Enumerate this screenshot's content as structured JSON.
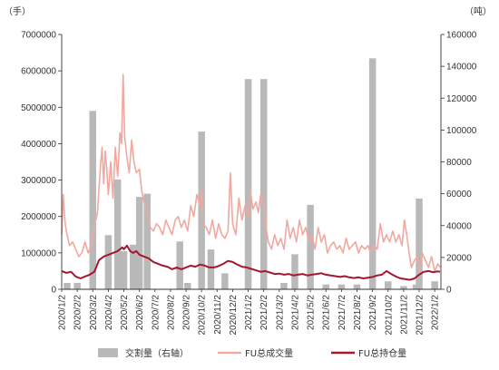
{
  "chart_data": {
    "type": "bar+line",
    "title": "",
    "y_left_unit": "（手）",
    "y_right_unit": "（吨）",
    "y_left_ticks": [
      "0",
      "1000000",
      "2000000",
      "3000000",
      "4000000",
      "5000000",
      "6000000",
      "7000000"
    ],
    "y_right_ticks": [
      "0",
      "20000",
      "40000",
      "60000",
      "80000",
      "100000",
      "120000",
      "140000",
      "160000"
    ],
    "ylim_left": [
      0,
      7000000
    ],
    "ylim_right": [
      0,
      160000
    ],
    "x_ticks": [
      "2020/1/2",
      "2020/2/2",
      "2020/3/2",
      "2020/4/2",
      "2020/5/2",
      "2020/6/2",
      "2020/7/2",
      "2020/8/2",
      "2020/9/2",
      "2020/10/2",
      "2020/11/2",
      "2020/12/2",
      "2021/1/2",
      "2021/2/2",
      "2021/3/2",
      "2021/4/2",
      "2021/5/2",
      "2021/6/2",
      "2021/7/2",
      "2021/8/2",
      "2021/9/2",
      "2021/10/2",
      "2021/11/2",
      "2021/12/2",
      "2022/1/2"
    ],
    "legend_position": "bottom",
    "series": [
      {
        "name": "交割量（右轴）",
        "kind": "bar",
        "axis": "right",
        "color": "#b9b9b9",
        "points": [
          {
            "x": 0.35,
            "y": 4000
          },
          {
            "x": 1.0,
            "y": 4000
          },
          {
            "x": 2.0,
            "y": 112000
          },
          {
            "x": 3.0,
            "y": 34000
          },
          {
            "x": 3.6,
            "y": 69000
          },
          {
            "x": 4.0,
            "y": 24000
          },
          {
            "x": 4.6,
            "y": 28000
          },
          {
            "x": 5.0,
            "y": 58000
          },
          {
            "x": 5.5,
            "y": 60000
          },
          {
            "x": 7.6,
            "y": 30000
          },
          {
            "x": 8.1,
            "y": 4000
          },
          {
            "x": 9.0,
            "y": 99000
          },
          {
            "x": 9.6,
            "y": 25000
          },
          {
            "x": 10.5,
            "y": 10000
          },
          {
            "x": 12.0,
            "y": 132000
          },
          {
            "x": 13.0,
            "y": 132000
          },
          {
            "x": 14.3,
            "y": 4000
          },
          {
            "x": 15.0,
            "y": 22000
          },
          {
            "x": 16.0,
            "y": 53000
          },
          {
            "x": 17.0,
            "y": 3000
          },
          {
            "x": 18.0,
            "y": 3000
          },
          {
            "x": 19.0,
            "y": 3000
          },
          {
            "x": 20.0,
            "y": 145000
          },
          {
            "x": 21.0,
            "y": 5000
          },
          {
            "x": 22.0,
            "y": 2000
          },
          {
            "x": 22.8,
            "y": 3000
          },
          {
            "x": 23.0,
            "y": 57000
          },
          {
            "x": 24.0,
            "y": 5000
          }
        ]
      },
      {
        "name": "FU总成交量",
        "kind": "line",
        "axis": "left",
        "color": "#f0a8a0",
        "points": [
          [
            0.0,
            1500000
          ],
          [
            0.1,
            2600000
          ],
          [
            0.2,
            1900000
          ],
          [
            0.3,
            1600000
          ],
          [
            0.5,
            1200000
          ],
          [
            0.7,
            1300000
          ],
          [
            0.9,
            1100000
          ],
          [
            1.1,
            900000
          ],
          [
            1.3,
            1000000
          ],
          [
            1.5,
            1300000
          ],
          [
            1.7,
            1000000
          ],
          [
            1.9,
            1200000
          ],
          [
            2.1,
            1700000
          ],
          [
            2.3,
            2100000
          ],
          [
            2.5,
            3400000
          ],
          [
            2.6,
            3900000
          ],
          [
            2.7,
            2900000
          ],
          [
            2.8,
            3800000
          ],
          [
            2.9,
            3300000
          ],
          [
            3.0,
            2600000
          ],
          [
            3.15,
            3500000
          ],
          [
            3.3,
            2500000
          ],
          [
            3.45,
            3900000
          ],
          [
            3.6,
            3100000
          ],
          [
            3.75,
            4300000
          ],
          [
            3.85,
            4000000
          ],
          [
            3.95,
            5900000
          ],
          [
            4.05,
            4200000
          ],
          [
            4.2,
            3600000
          ],
          [
            4.35,
            3200000
          ],
          [
            4.5,
            4100000
          ],
          [
            4.65,
            3500000
          ],
          [
            4.8,
            3200000
          ],
          [
            5.0,
            3300000
          ],
          [
            5.15,
            2700000
          ],
          [
            5.3,
            2400000
          ],
          [
            5.5,
            2100000
          ],
          [
            5.7,
            1700000
          ],
          [
            5.9,
            1600000
          ],
          [
            6.1,
            1800000
          ],
          [
            6.3,
            1700000
          ],
          [
            6.5,
            1500000
          ],
          [
            6.7,
            1900000
          ],
          [
            6.9,
            1700000
          ],
          [
            7.1,
            1500000
          ],
          [
            7.3,
            1900000
          ],
          [
            7.5,
            2000000
          ],
          [
            7.7,
            1700000
          ],
          [
            7.9,
            1900000
          ],
          [
            8.1,
            1600000
          ],
          [
            8.3,
            2300000
          ],
          [
            8.5,
            2000000
          ],
          [
            8.7,
            2600000
          ],
          [
            8.9,
            2300000
          ],
          [
            9.0,
            2700000
          ],
          [
            9.1,
            1800000
          ],
          [
            9.3,
            1700000
          ],
          [
            9.5,
            1500000
          ],
          [
            9.7,
            1900000
          ],
          [
            9.9,
            1400000
          ],
          [
            10.1,
            1800000
          ],
          [
            10.3,
            1500000
          ],
          [
            10.5,
            1400000
          ],
          [
            10.7,
            1600000
          ],
          [
            10.85,
            3200000
          ],
          [
            11.0,
            1800000
          ],
          [
            11.2,
            1500000
          ],
          [
            11.4,
            2500000
          ],
          [
            11.6,
            1900000
          ],
          [
            11.8,
            2300000
          ],
          [
            12.0,
            2000000
          ],
          [
            12.15,
            2700000
          ],
          [
            12.3,
            2200000
          ],
          [
            12.5,
            2400000
          ],
          [
            12.65,
            2100000
          ],
          [
            12.8,
            2600000
          ],
          [
            13.0,
            2300000
          ],
          [
            13.15,
            1700000
          ],
          [
            13.3,
            1300000
          ],
          [
            13.5,
            1100000
          ],
          [
            13.7,
            1500000
          ],
          [
            13.9,
            1200000
          ],
          [
            14.1,
            1400000
          ],
          [
            14.3,
            1100000
          ],
          [
            14.5,
            1900000
          ],
          [
            14.7,
            1400000
          ],
          [
            14.9,
            1700000
          ],
          [
            15.1,
            1300000
          ],
          [
            15.3,
            1900000
          ],
          [
            15.5,
            1500000
          ],
          [
            15.7,
            1700000
          ],
          [
            15.9,
            1300000
          ],
          [
            16.1,
            1500000
          ],
          [
            16.3,
            1100000
          ],
          [
            16.5,
            1700000
          ],
          [
            16.7,
            1300000
          ],
          [
            16.9,
            1500000
          ],
          [
            17.1,
            1000000
          ],
          [
            17.3,
            1200000
          ],
          [
            17.5,
            1300000
          ],
          [
            17.7,
            1100000
          ],
          [
            17.9,
            1200000
          ],
          [
            18.1,
            1000000
          ],
          [
            18.3,
            1400000
          ],
          [
            18.5,
            1100000
          ],
          [
            18.7,
            1200000
          ],
          [
            18.9,
            1300000
          ],
          [
            19.1,
            1000000
          ],
          [
            19.3,
            1200000
          ],
          [
            19.5,
            1100000
          ],
          [
            19.7,
            1200000
          ],
          [
            19.9,
            1000000
          ],
          [
            20.1,
            1200000
          ],
          [
            20.3,
            1100000
          ],
          [
            20.5,
            1800000
          ],
          [
            20.7,
            1300000
          ],
          [
            20.9,
            1500000
          ],
          [
            21.1,
            1300000
          ],
          [
            21.3,
            1600000
          ],
          [
            21.5,
            1300000
          ],
          [
            21.7,
            1500000
          ],
          [
            21.9,
            1200000
          ],
          [
            22.05,
            1900000
          ],
          [
            22.2,
            1500000
          ],
          [
            22.35,
            1000000
          ],
          [
            22.5,
            600000
          ],
          [
            22.7,
            800000
          ],
          [
            22.9,
            900000
          ],
          [
            23.05,
            500000
          ],
          [
            23.2,
            1000000
          ],
          [
            23.4,
            800000
          ],
          [
            23.6,
            600000
          ],
          [
            23.8,
            900000
          ],
          [
            24.0,
            500000
          ],
          [
            24.2,
            700000
          ],
          [
            24.35,
            600000
          ]
        ]
      },
      {
        "name": "FU总持仓量",
        "kind": "line",
        "axis": "left",
        "color": "#a5172e",
        "points": [
          [
            0.0,
            500000
          ],
          [
            0.3,
            450000
          ],
          [
            0.6,
            480000
          ],
          [
            0.9,
            350000
          ],
          [
            1.2,
            300000
          ],
          [
            1.5,
            350000
          ],
          [
            1.8,
            400000
          ],
          [
            2.1,
            480000
          ],
          [
            2.4,
            800000
          ],
          [
            2.7,
            900000
          ],
          [
            3.0,
            950000
          ],
          [
            3.3,
            1000000
          ],
          [
            3.6,
            1050000
          ],
          [
            3.9,
            1150000
          ],
          [
            4.0,
            1100000
          ],
          [
            4.2,
            1200000
          ],
          [
            4.4,
            1050000
          ],
          [
            4.6,
            1000000
          ],
          [
            4.8,
            1050000
          ],
          [
            5.0,
            950000
          ],
          [
            5.3,
            900000
          ],
          [
            5.6,
            850000
          ],
          [
            5.9,
            750000
          ],
          [
            6.2,
            700000
          ],
          [
            6.5,
            650000
          ],
          [
            6.8,
            620000
          ],
          [
            7.1,
            550000
          ],
          [
            7.4,
            600000
          ],
          [
            7.7,
            550000
          ],
          [
            8.0,
            600000
          ],
          [
            8.3,
            650000
          ],
          [
            8.6,
            620000
          ],
          [
            8.9,
            680000
          ],
          [
            9.2,
            650000
          ],
          [
            9.5,
            600000
          ],
          [
            9.8,
            600000
          ],
          [
            10.1,
            640000
          ],
          [
            10.4,
            700000
          ],
          [
            10.7,
            780000
          ],
          [
            11.0,
            750000
          ],
          [
            11.3,
            680000
          ],
          [
            11.6,
            620000
          ],
          [
            11.9,
            600000
          ],
          [
            12.2,
            560000
          ],
          [
            12.5,
            520000
          ],
          [
            12.8,
            480000
          ],
          [
            13.1,
            500000
          ],
          [
            13.4,
            460000
          ],
          [
            13.7,
            420000
          ],
          [
            14.0,
            430000
          ],
          [
            14.3,
            400000
          ],
          [
            14.6,
            420000
          ],
          [
            14.9,
            380000
          ],
          [
            15.2,
            400000
          ],
          [
            15.5,
            420000
          ],
          [
            15.8,
            380000
          ],
          [
            16.1,
            400000
          ],
          [
            16.4,
            420000
          ],
          [
            16.7,
            440000
          ],
          [
            17.0,
            400000
          ],
          [
            17.3,
            380000
          ],
          [
            17.6,
            360000
          ],
          [
            17.9,
            340000
          ],
          [
            18.2,
            360000
          ],
          [
            18.5,
            330000
          ],
          [
            18.8,
            310000
          ],
          [
            19.1,
            330000
          ],
          [
            19.4,
            300000
          ],
          [
            19.7,
            320000
          ],
          [
            20.0,
            340000
          ],
          [
            20.3,
            380000
          ],
          [
            20.6,
            400000
          ],
          [
            20.9,
            500000
          ],
          [
            21.2,
            420000
          ],
          [
            21.5,
            350000
          ],
          [
            21.8,
            300000
          ],
          [
            22.1,
            280000
          ],
          [
            22.4,
            260000
          ],
          [
            22.7,
            300000
          ],
          [
            23.0,
            400000
          ],
          [
            23.3,
            480000
          ],
          [
            23.6,
            500000
          ],
          [
            23.9,
            470000
          ],
          [
            24.2,
            490000
          ],
          [
            24.35,
            480000
          ]
        ]
      }
    ]
  }
}
